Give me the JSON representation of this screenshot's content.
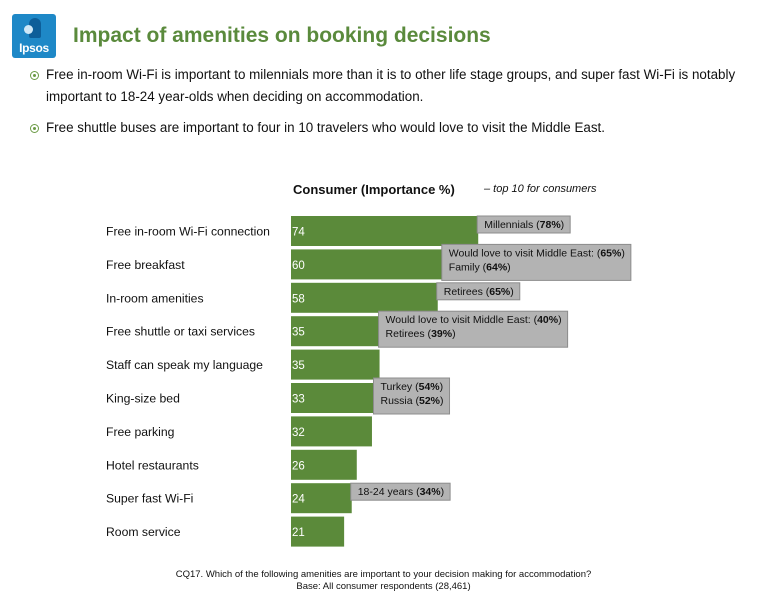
{
  "logo": {
    "text": "Ipsos"
  },
  "title": "Impact of amenities on booking decisions",
  "bullets": [
    "Free in-room Wi-Fi is important to milennials more than it is to other life stage groups, and super fast Wi-Fi is notably important to 18-24 year-olds when deciding on accommodation.",
    "Free shuttle buses are important to four in 10 travelers who would love to visit the Middle East."
  ],
  "chart_data": {
    "type": "bar",
    "orientation": "horizontal",
    "title": "Consumer (Importance %)",
    "subtitle": "– top 10 for consumers",
    "categories": [
      "Free in-room Wi-Fi connection",
      "Free breakfast",
      "In-room amenities",
      "Free shuttle or taxi services",
      "Staff can speak my language",
      "King-size bed",
      "Free parking",
      "Hotel restaurants",
      "Super fast Wi-Fi",
      "Room service"
    ],
    "values": [
      74,
      60,
      58,
      35,
      35,
      33,
      32,
      26,
      24,
      21
    ],
    "bar_color": "#5b8a3a",
    "callout_color": "#b3b3b3",
    "callouts": [
      {
        "index": 0,
        "lines": [
          {
            "label": "Millennials",
            "value": "78%"
          }
        ]
      },
      {
        "index": 1,
        "lines": [
          {
            "label": "Would love to visit Middle East:",
            "value": "65%"
          },
          {
            "label": "Family",
            "value": "64%"
          }
        ]
      },
      {
        "index": 2,
        "lines": [
          {
            "label": "Retirees",
            "value": "65%"
          }
        ]
      },
      {
        "index": 3,
        "lines": [
          {
            "label": "Would love to visit Middle East:",
            "value": "40%"
          },
          {
            "label": "Retirees",
            "value": "39%"
          }
        ]
      },
      {
        "index": 5,
        "lines": [
          {
            "label": "Turkey",
            "value": "54%"
          },
          {
            "label": "Russia",
            "value": "52%"
          }
        ]
      },
      {
        "index": 8,
        "lines": [
          {
            "label": "18-24 years",
            "value": "34%"
          }
        ]
      }
    ]
  },
  "footnotes": [
    "CQ17. Which of the following amenities are important to your decision making for accommodation?",
    "Base: All consumer respondents (28,461)"
  ]
}
